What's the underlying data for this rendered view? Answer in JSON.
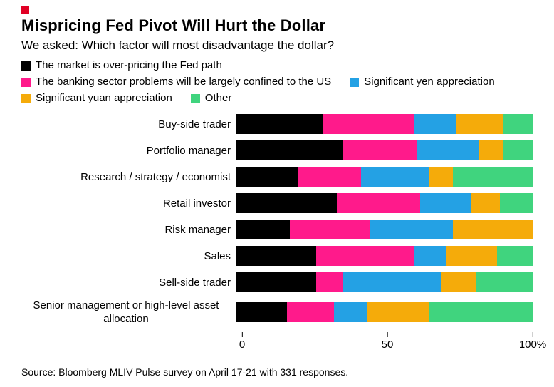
{
  "header": {
    "title": "Mispricing Fed Pivot Will Hurt the Dollar",
    "subtitle": "We asked: Which factor will most disadvantage the dollar?"
  },
  "colors": {
    "accent_red": "#e10025",
    "black": "#000000",
    "pink": "#ff1a8b",
    "blue": "#24a1e4",
    "yellow": "#f5ab0a",
    "green": "#40d47e"
  },
  "chart_data": {
    "type": "bar",
    "orientation": "horizontal",
    "stacked": true,
    "unit": "%",
    "xlim": [
      0,
      100
    ],
    "x_ticks": [
      "0",
      "50",
      "100%"
    ],
    "x_tick_positions": [
      0,
      50,
      100
    ],
    "legend_position": "top",
    "grid": false,
    "categories": [
      "Buy-side trader",
      "Portfolio manager",
      "Research / strategy / economist",
      "Retail investor",
      "Risk manager",
      "Sales",
      "Sell-side trader",
      "Senior management or high-level asset allocation"
    ],
    "series": [
      {
        "name": "The market is over-pricing the Fed path",
        "color": "#000000",
        "values": [
          29,
          36,
          21,
          34,
          18,
          27,
          27,
          17
        ]
      },
      {
        "name": "The banking sector problems will be largely confined to the US",
        "color": "#ff1a8b",
        "values": [
          31,
          25,
          21,
          28,
          27,
          33,
          9,
          16
        ]
      },
      {
        "name": "Significant yen appreciation",
        "color": "#24a1e4",
        "values": [
          14,
          21,
          23,
          17,
          28,
          11,
          33,
          11
        ]
      },
      {
        "name": "Significant yuan appreciation",
        "color": "#f5ab0a",
        "values": [
          16,
          8,
          8,
          10,
          27,
          17,
          12,
          21
        ]
      },
      {
        "name": "Other",
        "color": "#40d47e",
        "values": [
          10,
          10,
          27,
          11,
          0,
          12,
          19,
          35
        ]
      }
    ]
  },
  "footer": {
    "source": "Source: Bloomberg MLIV Pulse survey on April 17-21 with 331 responses."
  }
}
